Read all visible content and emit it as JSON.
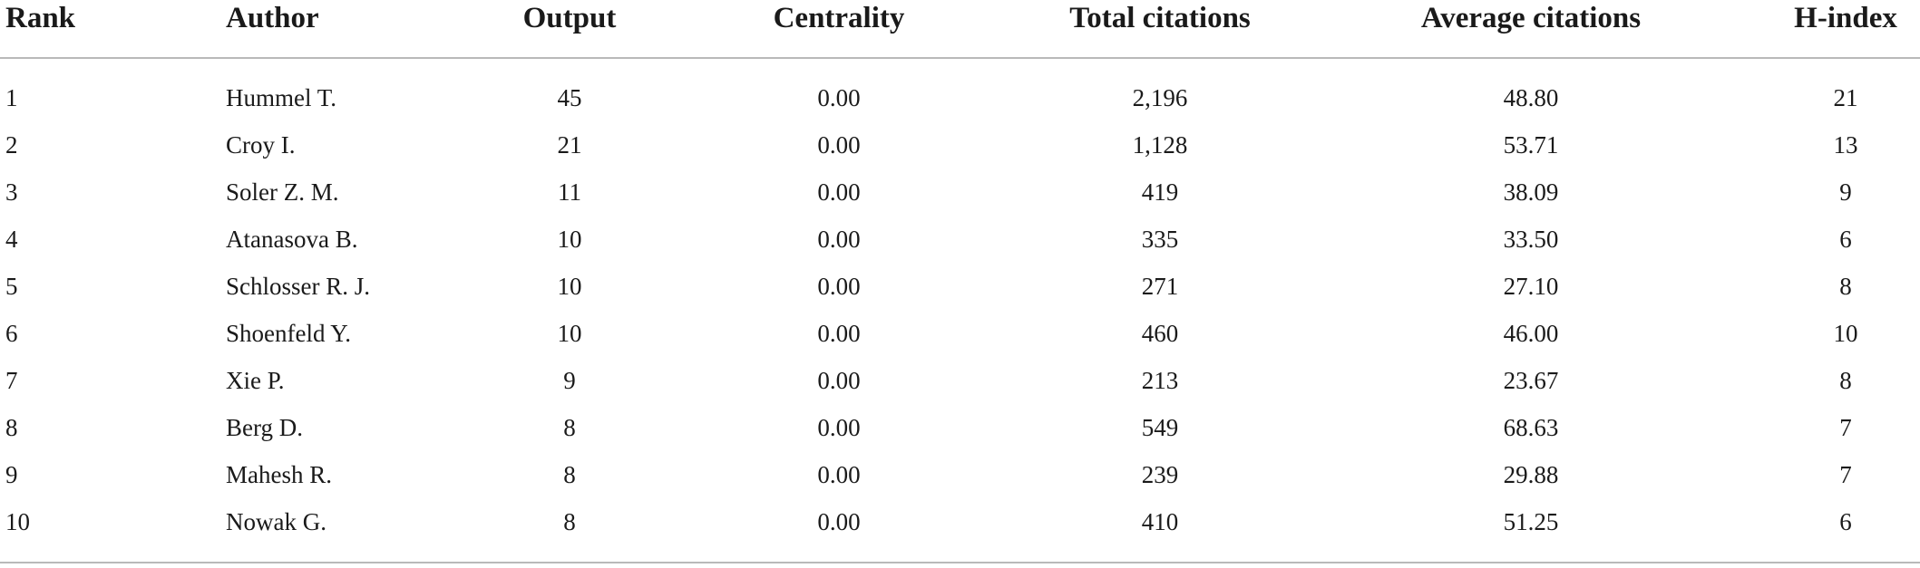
{
  "table": {
    "headers": {
      "rank": "Rank",
      "author": "Author",
      "output": "Output",
      "centrality": "Centrality",
      "total_citations": "Total citations",
      "average_citations": "Average citations",
      "h_index": "H-index"
    },
    "rows": [
      {
        "rank": "1",
        "author": "Hummel T.",
        "output": "45",
        "centrality": "0.00",
        "total_citations": "2,196",
        "average_citations": "48.80",
        "h_index": "21"
      },
      {
        "rank": "2",
        "author": "Croy I.",
        "output": "21",
        "centrality": "0.00",
        "total_citations": "1,128",
        "average_citations": "53.71",
        "h_index": "13"
      },
      {
        "rank": "3",
        "author": "Soler Z. M.",
        "output": "11",
        "centrality": "0.00",
        "total_citations": "419",
        "average_citations": "38.09",
        "h_index": "9"
      },
      {
        "rank": "4",
        "author": "Atanasova B.",
        "output": "10",
        "centrality": "0.00",
        "total_citations": "335",
        "average_citations": "33.50",
        "h_index": "6"
      },
      {
        "rank": "5",
        "author": "Schlosser R. J.",
        "output": "10",
        "centrality": "0.00",
        "total_citations": "271",
        "average_citations": "27.10",
        "h_index": "8"
      },
      {
        "rank": "6",
        "author": "Shoenfeld Y.",
        "output": "10",
        "centrality": "0.00",
        "total_citations": "460",
        "average_citations": "46.00",
        "h_index": "10"
      },
      {
        "rank": "7",
        "author": "Xie P.",
        "output": "9",
        "centrality": "0.00",
        "total_citations": "213",
        "average_citations": "23.67",
        "h_index": "8"
      },
      {
        "rank": "8",
        "author": "Berg D.",
        "output": "8",
        "centrality": "0.00",
        "total_citations": "549",
        "average_citations": "68.63",
        "h_index": "7"
      },
      {
        "rank": "9",
        "author": "Mahesh R.",
        "output": "8",
        "centrality": "0.00",
        "total_citations": "239",
        "average_citations": "29.88",
        "h_index": "7"
      },
      {
        "rank": "10",
        "author": "Nowak G.",
        "output": "8",
        "centrality": "0.00",
        "total_citations": "410",
        "average_citations": "51.25",
        "h_index": "6"
      }
    ]
  }
}
